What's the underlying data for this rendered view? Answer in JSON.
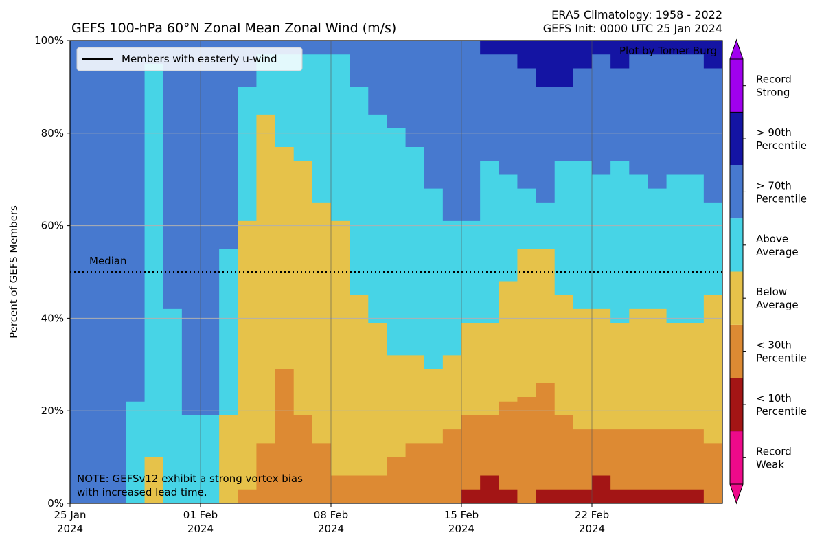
{
  "header": {
    "title": "GEFS 100-hPa 60°N Zonal Mean Zonal Wind (m/s)",
    "right_line1": "ERA5 Climatology: 1958 - 2022",
    "right_line2": "GEFS Init: 0000 UTC 25 Jan 2024"
  },
  "credit": "Plot by Tomer Burg",
  "note": {
    "line1": "NOTE: GEFSv12 exhibit a strong vortex bias",
    "line2": "with increased lead time."
  },
  "legend": {
    "label": "Members with easterly u-wind"
  },
  "median_label": "Median",
  "colorbar": {
    "categories": [
      {
        "line1": "Record",
        "line2": "Weak",
        "color": "#ee0a8a"
      },
      {
        "line1": "< 10th",
        "line2": "Percentile",
        "color": "#a31515"
      },
      {
        "line1": "< 30th",
        "line2": "Percentile",
        "color": "#dd8a33"
      },
      {
        "line1": "Below",
        "line2": "Average",
        "color": "#e6c24a"
      },
      {
        "line1": "Above",
        "line2": "Average",
        "color": "#47d4e6"
      },
      {
        "line1": "> 70th",
        "line2": "Percentile",
        "color": "#4779cf"
      },
      {
        "line1": "> 90th",
        "line2": "Percentile",
        "color": "#1414a3"
      },
      {
        "line1": "Record",
        "line2": "Strong",
        "color": "#a000ee"
      }
    ]
  },
  "chart_data": {
    "type": "area",
    "ylabel": "Percent of GEFS Members",
    "y_unit": "%",
    "ylim": [
      0,
      100
    ],
    "yticks": [
      0,
      20,
      40,
      60,
      80,
      100
    ],
    "ytick_labels": [
      "0%",
      "20%",
      "40%",
      "60%",
      "80%",
      "100%"
    ],
    "xlim": [
      "2024-01-25",
      "2024-02-29"
    ],
    "x_unit": "day",
    "xticks": [
      {
        "date": "2024-01-25",
        "line1": "25 Jan",
        "line2": "2024"
      },
      {
        "date": "2024-02-01",
        "line1": "01 Feb",
        "line2": "2024"
      },
      {
        "date": "2024-02-08",
        "line1": "08 Feb",
        "line2": "2024"
      },
      {
        "date": "2024-02-15",
        "line1": "15 Feb",
        "line2": "2024"
      },
      {
        "date": "2024-02-22",
        "line1": "22 Feb",
        "line2": "2024"
      }
    ],
    "median": 50,
    "grid": "horizontal at y ticks, vertical at x ticks",
    "legend_position": "top-left",
    "easterly_members_percent": 0,
    "series_order": [
      "Record Weak",
      "< 10th Percentile",
      "< 30th Percentile",
      "Below Average",
      "Above Average",
      "> 70th Percentile",
      "> 90th Percentile",
      "Record Strong"
    ],
    "cumulative_thresholds": {
      "note": "cumulative percent of members at or below the top of each category, at key points; piecewise, interpolated",
      "x": [
        "2024-01-25",
        "2024-01-28",
        "2024-01-29",
        "2024-01-30",
        "2024-01-31",
        "2024-02-01",
        "2024-02-02",
        "2024-02-03",
        "2024-02-04",
        "2024-02-05",
        "2024-02-06",
        "2024-02-07",
        "2024-02-08",
        "2024-02-09",
        "2024-02-10",
        "2024-02-11",
        "2024-02-12",
        "2024-02-13",
        "2024-02-14",
        "2024-02-15",
        "2024-02-16",
        "2024-02-17",
        "2024-02-18",
        "2024-02-19",
        "2024-02-20",
        "2024-02-21",
        "2024-02-22",
        "2024-02-23",
        "2024-02-24",
        "2024-02-25",
        "2024-02-26",
        "2024-02-27",
        "2024-02-28",
        "2024-02-29"
      ],
      "lt10th": [
        0,
        0,
        0,
        0,
        0,
        0,
        0,
        0,
        0,
        0,
        0,
        0,
        0,
        0,
        0,
        0,
        0,
        0,
        0,
        3,
        6,
        3,
        0,
        3,
        3,
        3,
        6,
        3,
        3,
        3,
        3,
        3,
        0,
        0
      ],
      "lt30th": [
        0,
        0,
        0,
        0,
        0,
        0,
        0,
        3,
        13,
        29,
        19,
        13,
        6,
        6,
        6,
        10,
        13,
        13,
        16,
        19,
        19,
        22,
        23,
        26,
        19,
        16,
        16,
        16,
        16,
        16,
        16,
        16,
        13,
        13
      ],
      "below_avg": [
        0,
        0,
        10,
        0,
        0,
        0,
        19,
        61,
        84,
        77,
        74,
        65,
        61,
        45,
        39,
        32,
        32,
        29,
        32,
        39,
        39,
        48,
        55,
        55,
        45,
        42,
        42,
        39,
        42,
        42,
        39,
        39,
        45,
        42
      ],
      "above_avg": [
        0,
        22,
        95,
        42,
        19,
        19,
        55,
        90,
        97,
        97,
        97,
        97,
        97,
        90,
        84,
        81,
        77,
        68,
        61,
        61,
        74,
        71,
        68,
        65,
        74,
        74,
        71,
        74,
        71,
        68,
        71,
        71,
        65,
        61
      ],
      "gt70th": [
        100,
        100,
        100,
        100,
        100,
        100,
        100,
        100,
        100,
        100,
        100,
        100,
        100,
        100,
        100,
        100,
        100,
        100,
        100,
        100,
        97,
        97,
        94,
        90,
        90,
        94,
        97,
        94,
        97,
        97,
        97,
        97,
        94,
        100
      ]
    }
  }
}
